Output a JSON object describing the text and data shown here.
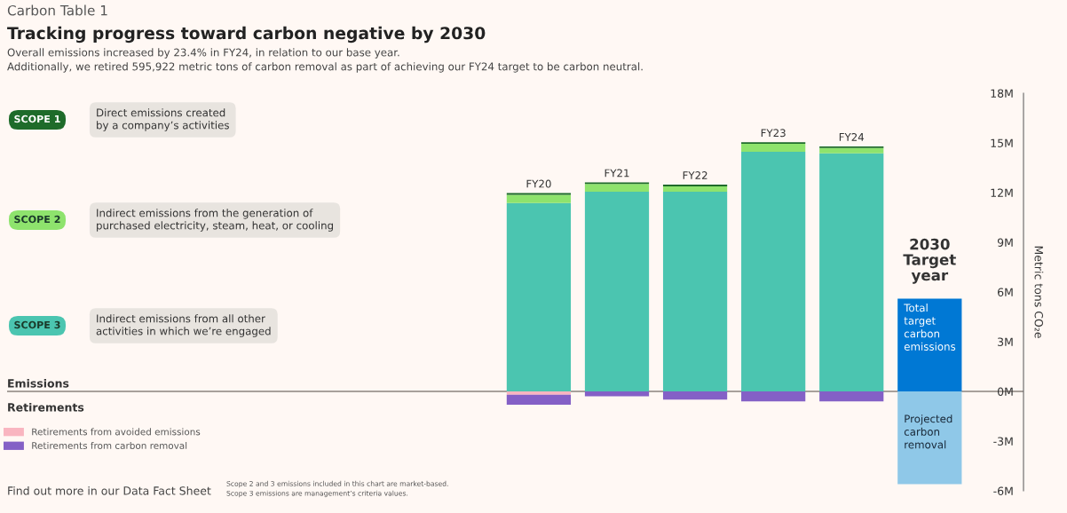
{
  "chart_data": {
    "type": "bar",
    "stacked": true,
    "title": "Tracking progress toward carbon negative by 2030",
    "subtitle": "Overall emissions increased by 23.4% in FY24, in relation to our base year.\nAdditionally, we retired 595,922 metric tons of carbon removal as part of achieving our FY24 target to be carbon neutral.",
    "categories": [
      "FY20",
      "FY21",
      "FY22",
      "FY23",
      "FY24",
      "2030\nTarget\nyear"
    ],
    "series": [
      {
        "name": "SCOPE 3",
        "color": "#4bc5b0",
        "values": [
          11.37,
          12.05,
          12.05,
          14.47,
          14.37,
          null
        ]
      },
      {
        "name": "SCOPE 2",
        "color": "#8ee36d",
        "values": [
          0.5,
          0.47,
          0.33,
          0.47,
          0.32,
          null
        ]
      },
      {
        "name": "SCOPE 1",
        "color": "#1e6b2a",
        "values": [
          0.1,
          0.1,
          0.1,
          0.1,
          0.1,
          null
        ]
      },
      {
        "name": "Retirements from avoided emissions",
        "color": "#f9b5c0",
        "values": [
          -0.2,
          null,
          null,
          null,
          null,
          null
        ]
      },
      {
        "name": "Retirements from carbon removal",
        "color": "#8460c6",
        "values": [
          -0.6,
          -0.3,
          -0.5,
          -0.6,
          -0.6,
          null
        ]
      },
      {
        "name": "Total target carbon emissions",
        "color": "#0078d4",
        "values": [
          null,
          null,
          null,
          null,
          null,
          5.6
        ]
      },
      {
        "name": "Projected carbon removal",
        "color": "#8fc8e8",
        "values": [
          null,
          null,
          null,
          null,
          null,
          -5.6
        ]
      }
    ],
    "ylim": [
      -6,
      18
    ],
    "yticks": [
      {
        "value": -6,
        "label": "-6M"
      },
      {
        "value": -3,
        "label": "-3M"
      },
      {
        "value": 0,
        "label": "0M"
      },
      {
        "value": 3,
        "label": "3M"
      },
      {
        "value": 6,
        "label": "6M"
      },
      {
        "value": 9,
        "label": "9M"
      },
      {
        "value": 12,
        "label": "12M"
      },
      {
        "value": 15,
        "label": "15M"
      },
      {
        "value": 18,
        "label": "18M"
      }
    ],
    "ylabel": "Metric tons CO₂e",
    "ref_lines": [
      {
        "axis": "y",
        "value": 0,
        "color": "#a8a19b"
      }
    ],
    "grid": false,
    "legend": "left",
    "annotations": [
      "Direct emissions created\nby a company’s activities",
      "Indirect emissions from the generation of\npurchased electricity, steam, heat, or cooling",
      "Indirect emissions from all other\nactivities in which we’re engaged",
      "Carbon Table 1",
      "Emissions",
      "Retirements",
      "Find out more in our Data Fact Sheet",
      "Scope 2 and 3 emissions included in this chart are market-based.\nScope 3 emissions are management’s criteria values."
    ]
  }
}
